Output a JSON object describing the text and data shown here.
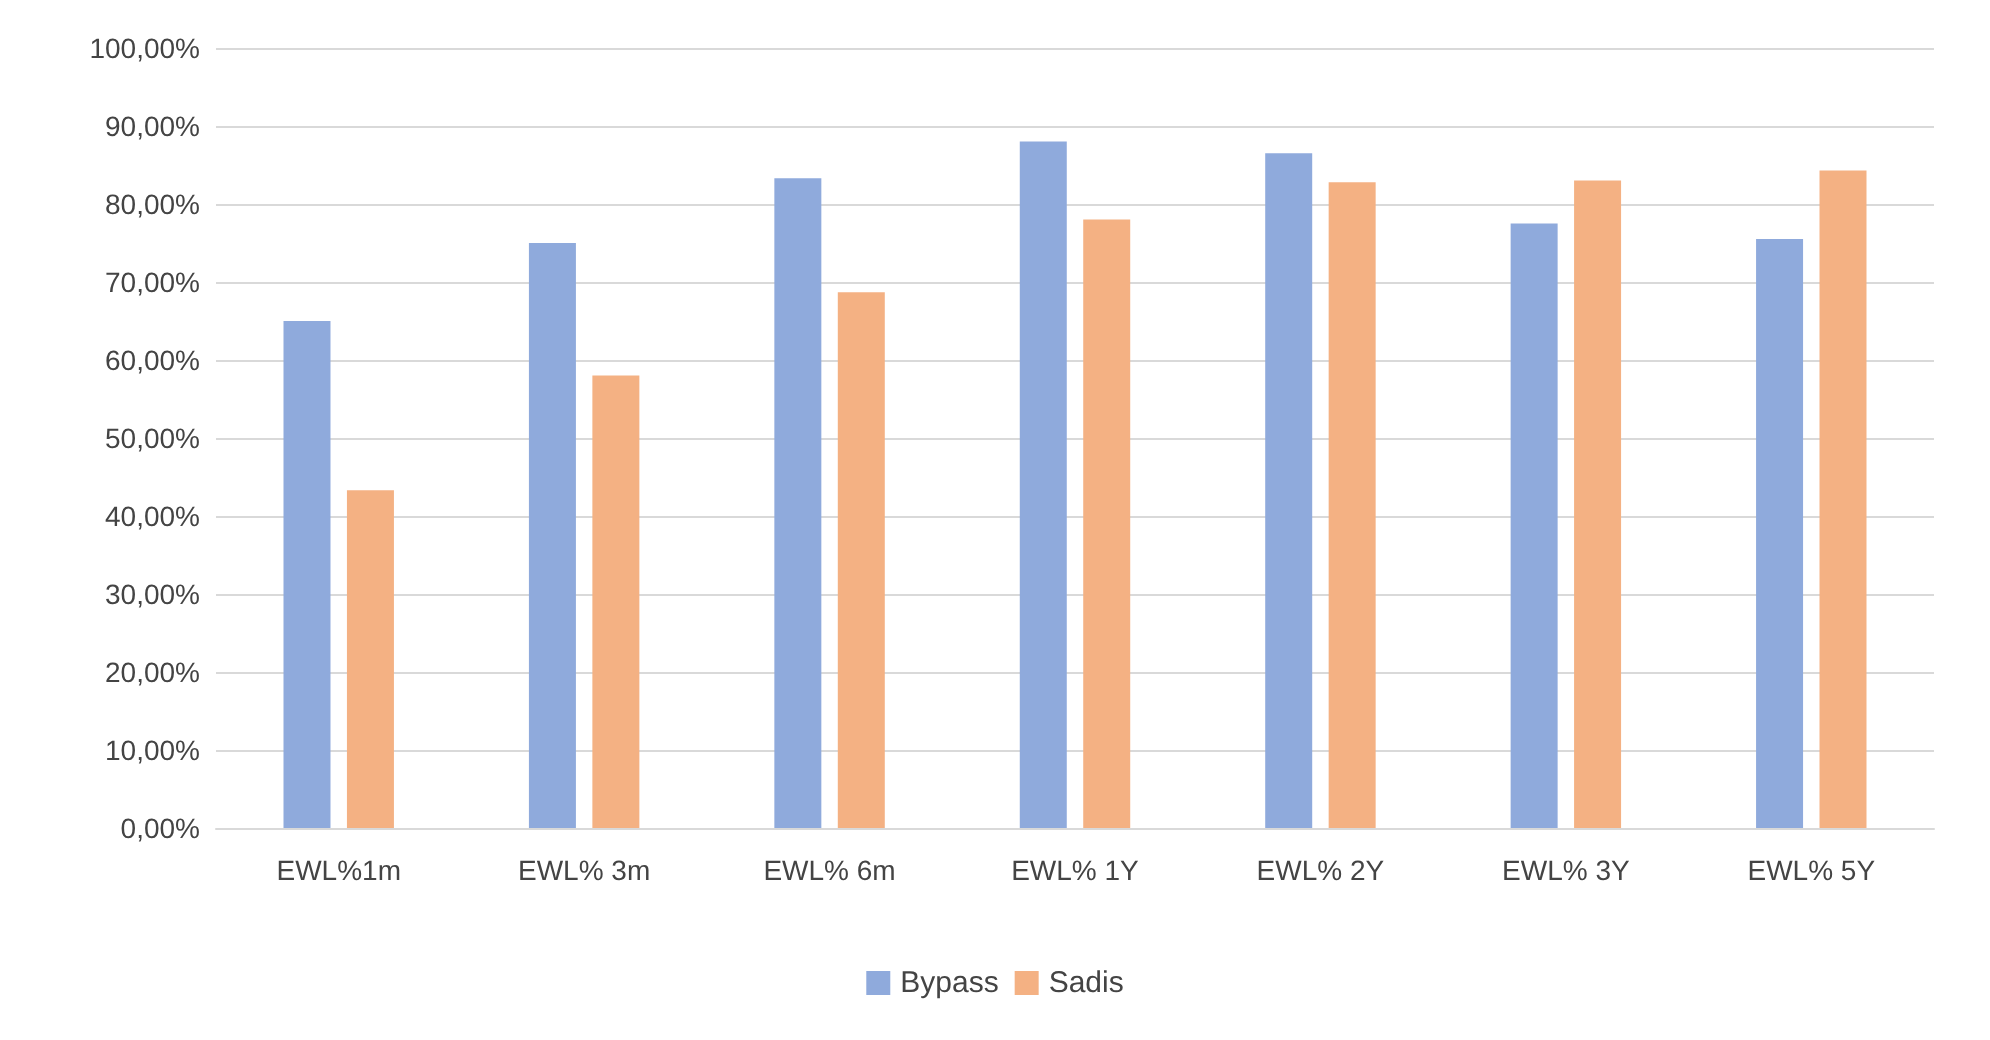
{
  "chart_data": {
    "type": "bar",
    "categories": [
      "EWL%1m",
      "EWL% 3m",
      "EWL% 6m",
      "EWL% 1Y",
      "EWL% 2Y",
      "EWL% 3Y",
      "EWL% 5Y"
    ],
    "series": [
      {
        "name": "Bypass",
        "color": "#8faadc",
        "values": [
          65,
          75,
          83.3,
          88,
          86.5,
          77.5,
          75.5
        ]
      },
      {
        "name": "Sadis",
        "color": "#f4b183",
        "values": [
          43.3,
          58,
          68.7,
          78,
          82.8,
          83,
          84.3
        ]
      }
    ],
    "ylim": [
      0,
      100
    ],
    "yticks": [
      {
        "value": 0,
        "label": "0,00%"
      },
      {
        "value": 10,
        "label": "10,00%"
      },
      {
        "value": 20,
        "label": "20,00%"
      },
      {
        "value": 30,
        "label": "30,00%"
      },
      {
        "value": 40,
        "label": "40,00%"
      },
      {
        "value": 50,
        "label": "50,00%"
      },
      {
        "value": 60,
        "label": "60,00%"
      },
      {
        "value": 70,
        "label": "70,00%"
      },
      {
        "value": 80,
        "label": "80,00%"
      },
      {
        "value": 90,
        "label": "90,00%"
      },
      {
        "value": 100,
        "label": "100,00%"
      }
    ],
    "grid": "y",
    "legend": "bottom"
  }
}
